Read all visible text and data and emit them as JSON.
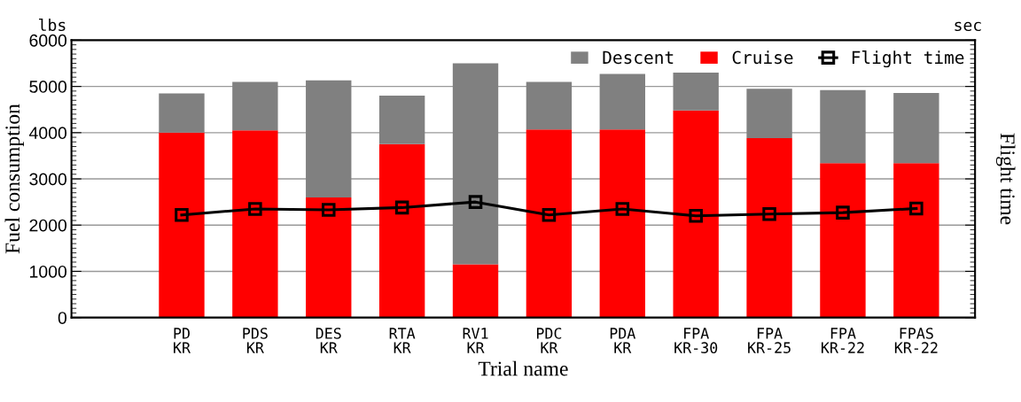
{
  "chart_data": {
    "type": "bar",
    "stacked": true,
    "xlabel": "Trial name",
    "ylabel": "Fuel consumption",
    "y2label": "Flight time",
    "annotations": [
      "lbs",
      "sec"
    ],
    "categories": [
      "PD\nKR",
      "PDS\nKR",
      "DES\nKR",
      "RTA\nKR",
      "RV1\nKR",
      "PDC\nKR",
      "PDA\nKR",
      "FPA\nKR-30",
      "FPA\nKR-25",
      "FPA\nKR-22",
      "FPAS\nKR-22"
    ],
    "series": [
      {
        "name": "Cruise",
        "color": "#ff0000",
        "values": [
          4000,
          4050,
          2600,
          3750,
          1150,
          4070,
          4070,
          4480,
          3880,
          3340,
          3340
        ]
      },
      {
        "name": "Descent",
        "color": "#808080",
        "values": [
          850,
          1050,
          2530,
          1050,
          4350,
          1030,
          1200,
          820,
          1070,
          1580,
          1520
        ]
      },
      {
        "name": "Flight time",
        "type": "line",
        "color": "#000000",
        "marker": "square",
        "values": [
          2220,
          2350,
          2330,
          2380,
          2500,
          2220,
          2350,
          2200,
          2240,
          2270,
          2360
        ]
      }
    ],
    "ylim": [
      0,
      6000
    ],
    "yticks": [
      0,
      1000,
      2000,
      3000,
      4000,
      5000,
      6000
    ],
    "grid": "y",
    "legend": "top right"
  }
}
